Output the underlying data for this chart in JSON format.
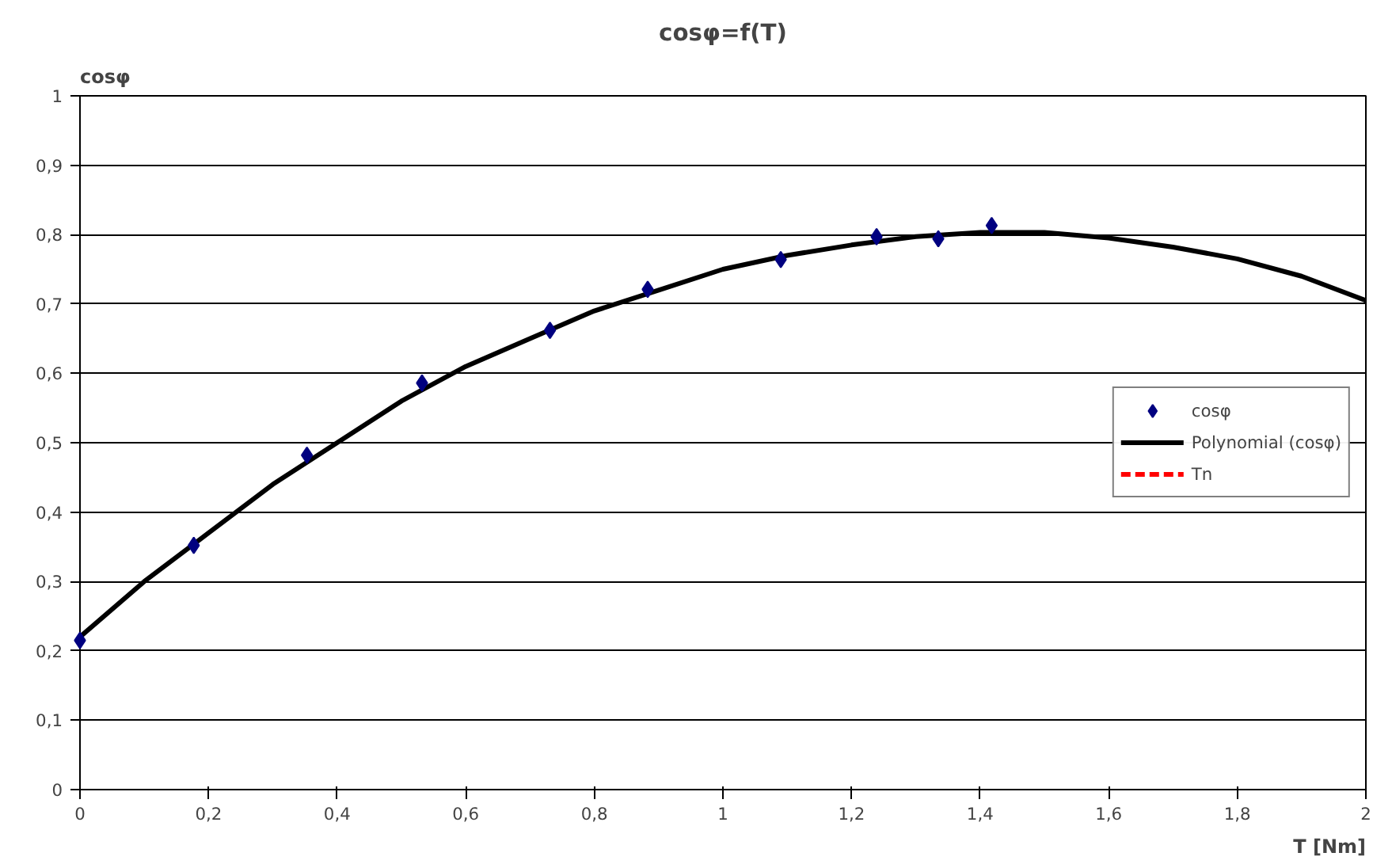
{
  "chart_data": {
    "type": "scatter",
    "title": "cosφ=f(T)",
    "xlabel": "T [Nm]",
    "ylabel": "cosφ",
    "xlim": [
      0,
      2
    ],
    "ylim": [
      0,
      1
    ],
    "xticks": [
      0,
      {
        "value": 0.2,
        "label": "0,2"
      },
      {
        "value": 0.4,
        "label": "0,4"
      },
      {
        "value": 0.6,
        "label": "0,6"
      },
      {
        "value": 0.8,
        "label": "0,8"
      },
      1,
      {
        "value": 1.2,
        "label": "1,2"
      },
      {
        "value": 1.4,
        "label": "1,4"
      },
      {
        "value": 1.6,
        "label": "1,6"
      },
      {
        "value": 1.8,
        "label": "1,8"
      },
      2
    ],
    "yticks": [
      0,
      {
        "value": 0.1,
        "label": "0,1"
      },
      {
        "value": 0.2,
        "label": "0,2"
      },
      {
        "value": 0.3,
        "label": "0,3"
      },
      {
        "value": 0.4,
        "label": "0,4"
      },
      {
        "value": 0.5,
        "label": "0,5"
      },
      {
        "value": 0.6,
        "label": "0,6"
      },
      {
        "value": 0.7,
        "label": "0,7"
      },
      {
        "value": 0.8,
        "label": "0,8"
      },
      {
        "value": 0.9,
        "label": "0,9"
      },
      1
    ],
    "grid": "y",
    "legend": "right",
    "series": [
      {
        "name": "cosφ",
        "marker": "diamond",
        "color": "#000080",
        "x": [
          0,
          0.177,
          0.353,
          0.532,
          0.731,
          0.883,
          1.09,
          1.239,
          1.335,
          1.418
        ],
        "values": [
          0.215,
          0.352,
          0.482,
          0.586,
          0.662,
          0.721,
          0.764,
          0.797,
          0.794,
          0.813
        ]
      },
      {
        "name": "Polynomial (cosφ)",
        "type": "line",
        "color": "#000000",
        "line_style": "solid",
        "marker": "none",
        "x": [
          0,
          0.1,
          0.2,
          0.3,
          0.4,
          0.5,
          0.6,
          0.7,
          0.8,
          0.9,
          1.0,
          1.1,
          1.2,
          1.3,
          1.4,
          1.5,
          1.6,
          1.7,
          1.8,
          1.9,
          2.0
        ],
        "values": [
          0.22,
          0.3,
          0.37,
          0.44,
          0.5,
          0.56,
          0.61,
          0.65,
          0.69,
          0.72,
          0.75,
          0.77,
          0.785,
          0.797,
          0.803,
          0.803,
          0.795,
          0.782,
          0.765,
          0.74,
          0.705
        ]
      },
      {
        "name": "Tn",
        "type": "line",
        "color": "#ff0000",
        "line_style": "dashed",
        "marker": "none",
        "x": [
          null
        ],
        "values": [
          null
        ]
      }
    ]
  }
}
